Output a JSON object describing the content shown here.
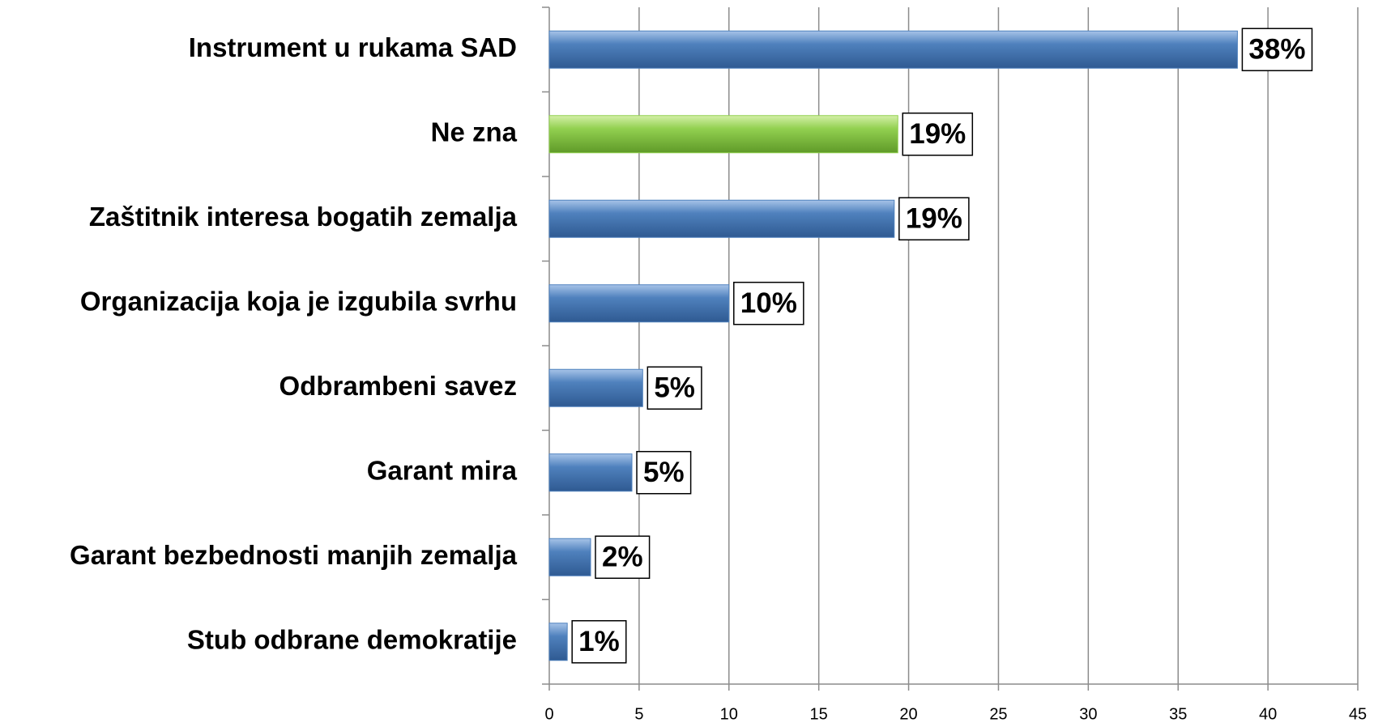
{
  "chart_data": {
    "type": "hbar",
    "categories": [
      "Instrument u rukama SAD",
      "Ne zna",
      "Zaštitnik interesa bogatih zemalja",
      "Organizacija koja je izgubila svrhu",
      "Odbrambeni savez",
      "Garant mira",
      "Garant bezbednosti manjih zemalja",
      "Stub odbrane demokratije"
    ],
    "values": [
      38.3,
      19.4,
      19.2,
      10.0,
      5.2,
      4.6,
      2.3,
      1.0
    ],
    "value_labels": [
      "38%",
      "19%",
      "19%",
      "10%",
      "5%",
      "5%",
      "2%",
      "1%"
    ],
    "colors": [
      "#4f81bd",
      "#92d050",
      "#4f81bd",
      "#4f81bd",
      "#4f81bd",
      "#4f81bd",
      "#4f81bd",
      "#4f81bd"
    ],
    "xlim": [
      0,
      45
    ],
    "xticks": [
      0,
      5,
      10,
      15,
      20,
      25,
      30,
      35,
      40,
      45
    ],
    "grid": true
  }
}
